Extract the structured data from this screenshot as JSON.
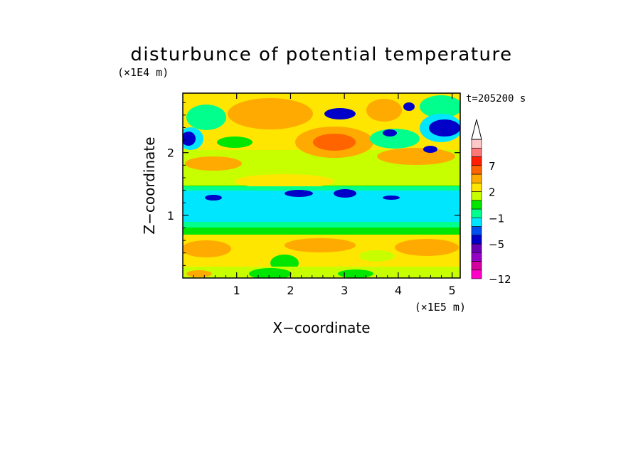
{
  "chart_data": {
    "type": "heatmap",
    "title": "disturbunce of potential temperature",
    "xlabel": "X−coordinate",
    "ylabel": "Z−coordinate",
    "x_unit_label": "(×1E5 m)",
    "y_unit_label": "(×1E4 m)",
    "time_label": "t=205200 s",
    "xlim": [
      0,
      5.15
    ],
    "ylim": [
      0,
      2.95
    ],
    "x_ticks": [
      1,
      2,
      3,
      4,
      5
    ],
    "x_tick_labels": [
      "1",
      "2",
      "3",
      "4",
      "5"
    ],
    "y_ticks": [
      1,
      2
    ],
    "y_tick_labels": [
      "1",
      "2"
    ],
    "grid": false,
    "colorbar": {
      "levels_bottom_to_top": [
        -12,
        -10,
        -8,
        -6,
        -5,
        -4,
        -3,
        -1,
        0,
        1,
        2,
        3,
        5,
        7,
        8,
        9,
        10
      ],
      "colors_bottom_to_top": [
        "#ff00c8",
        "#d4009e",
        "#9400c4",
        "#6a00b4",
        "#0000c8",
        "#0050f0",
        "#00e6ff",
        "#00ff8c",
        "#00e600",
        "#c8ff00",
        "#ffe600",
        "#ffaa00",
        "#ff6400",
        "#ff1e00",
        "#ff7878",
        "#ffc8c8"
      ],
      "extend_top_color": "#ffffff",
      "labels": [
        "−12",
        "−5",
        "−1",
        "2",
        "7"
      ]
    },
    "field_description_bands": [
      {
        "z_range": [
          0.0,
          0.15
        ],
        "dominant": "yellow/green"
      },
      {
        "z_range": [
          0.15,
          0.75
        ],
        "dominant": "orange/yellow"
      },
      {
        "z_range": [
          0.75,
          1.0
        ],
        "dominant": "green"
      },
      {
        "z_range": [
          1.0,
          1.5
        ],
        "dominant": "cyan"
      },
      {
        "z_range": [
          1.5,
          2.1
        ],
        "dominant": "yellow/green"
      },
      {
        "z_range": [
          2.1,
          2.95
        ],
        "dominant": "orange/yellow"
      }
    ]
  }
}
